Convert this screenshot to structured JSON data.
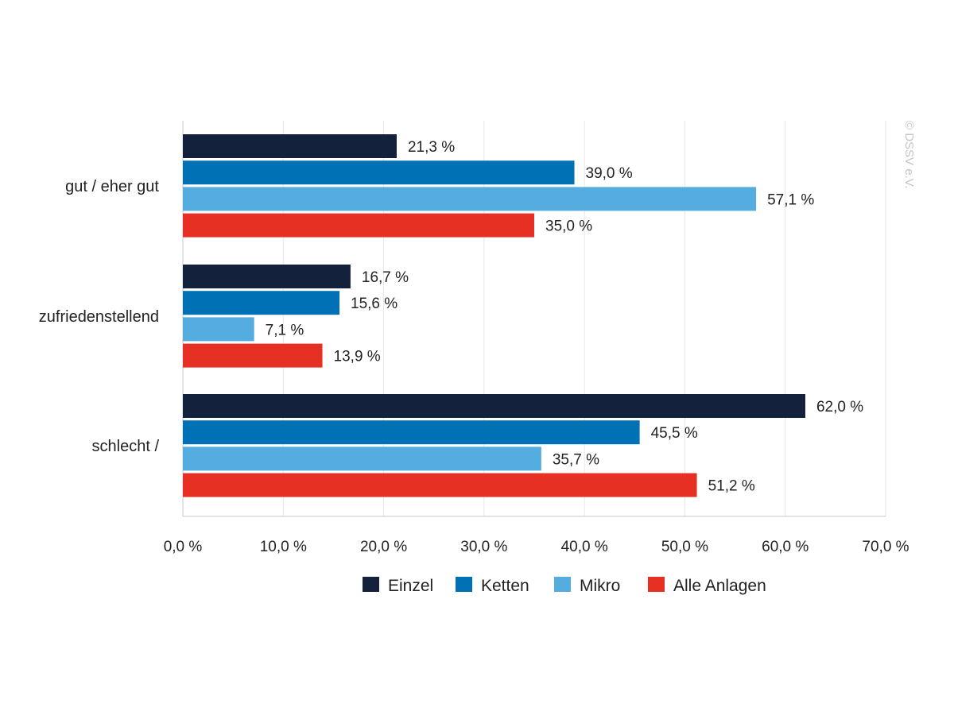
{
  "copyright": "© DSSV e.V.",
  "colors": {
    "grid": "#e6e6e6",
    "axis": "#c8c8c8",
    "text": "#222222"
  },
  "chart_data": {
    "type": "bar",
    "orientation": "horizontal",
    "categories": [
      "gut / eher gut",
      "zufriedenstellend",
      "schlecht /"
    ],
    "series": [
      {
        "name": "Einzel",
        "color": "#13213d",
        "values": [
          21.3,
          16.7,
          62.0
        ],
        "labels": [
          "21,3 %",
          "16,7 %",
          "62,0 %"
        ]
      },
      {
        "name": "Ketten",
        "color": "#0071b4",
        "values": [
          39.0,
          15.6,
          45.5
        ],
        "labels": [
          "39,0 %",
          "15,6 %",
          "45,5 %"
        ]
      },
      {
        "name": "Mikro",
        "color": "#55acdf",
        "values": [
          57.1,
          7.1,
          35.7
        ],
        "labels": [
          "57,1 %",
          "7,1 %",
          "35,7 %"
        ]
      },
      {
        "name": "Alle Anlagen",
        "color": "#e63024",
        "values": [
          35.0,
          13.9,
          51.2
        ],
        "labels": [
          "35,0 %",
          "13,9 %",
          "51,2 %"
        ]
      }
    ],
    "xlim": [
      0,
      70
    ],
    "xticks": [
      0,
      10,
      20,
      30,
      40,
      50,
      60,
      70
    ],
    "xtick_labels": [
      "0,0 %",
      "10,0 %",
      "20,0 %",
      "30,0 %",
      "40,0 %",
      "50,0 %",
      "60,0 %",
      "70,0 %"
    ],
    "grid": "vertical",
    "legend_position": "bottom"
  }
}
